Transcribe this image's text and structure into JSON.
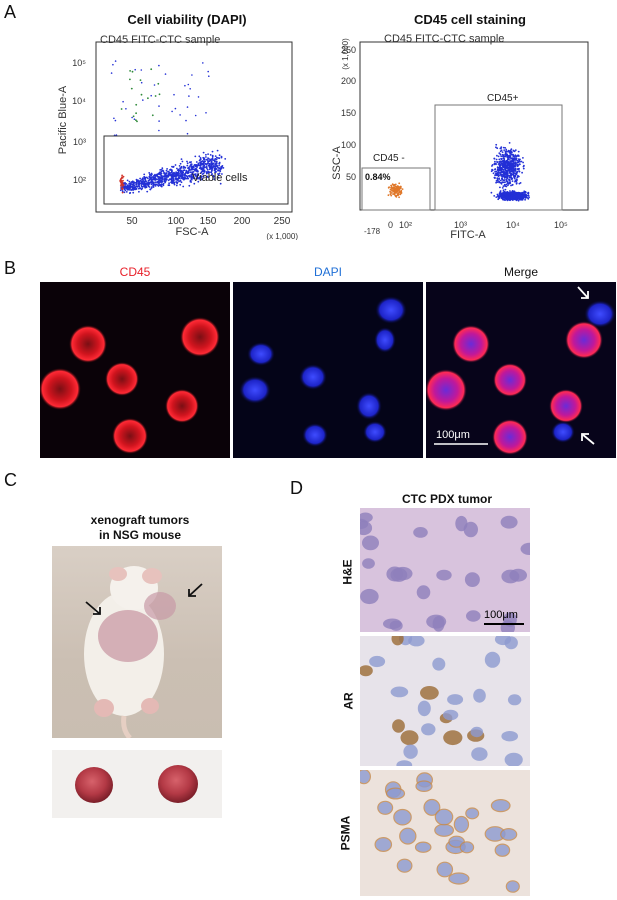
{
  "panels": {
    "A": "A",
    "B": "B",
    "C": "C",
    "D": "D"
  },
  "panelA": {
    "left": {
      "title": "Cell viability (DAPI)",
      "subtitle": "CD45 FITC-CTC sample",
      "ylabel": "Pacific Blue-A",
      "xlabel": "FSC-A",
      "xscale_note": "(x 1,000)",
      "yticks": [
        "10²",
        "10³",
        "10⁴",
        "10⁵"
      ],
      "xticks": [
        "50",
        "100",
        "150",
        "200",
        "250"
      ],
      "gate_label": "Viable cells"
    },
    "right": {
      "title": "CD45  cell staining",
      "subtitle": "CD45 FITC-CTC sample",
      "ylabel": "SSC-A",
      "yscale_note": "(x 1,000)",
      "xlabel": "FITC-A",
      "yticks": [
        "50",
        "100",
        "150",
        "200",
        "250"
      ],
      "xticks": [
        "-178",
        "0",
        "10²",
        "10³",
        "10⁴",
        "10⁵"
      ],
      "gate_neg_label": "CD45 -",
      "gate_neg_percent": "0.84%",
      "gate_pos_label": "CD45+"
    }
  },
  "panelB": {
    "labels": [
      "CD45",
      "DAPI",
      "Merge"
    ],
    "label_colors": [
      "#e8202a",
      "#1f6fd6",
      "#111111"
    ],
    "scalebar": "100μm"
  },
  "panelC": {
    "title_line1": "xenograft tumors",
    "title_line2": "in NSG mouse"
  },
  "panelD": {
    "title": "CTC PDX tumor",
    "rows": [
      "H&E",
      "AR",
      "PSMA"
    ],
    "scalebar": "100μm"
  }
}
